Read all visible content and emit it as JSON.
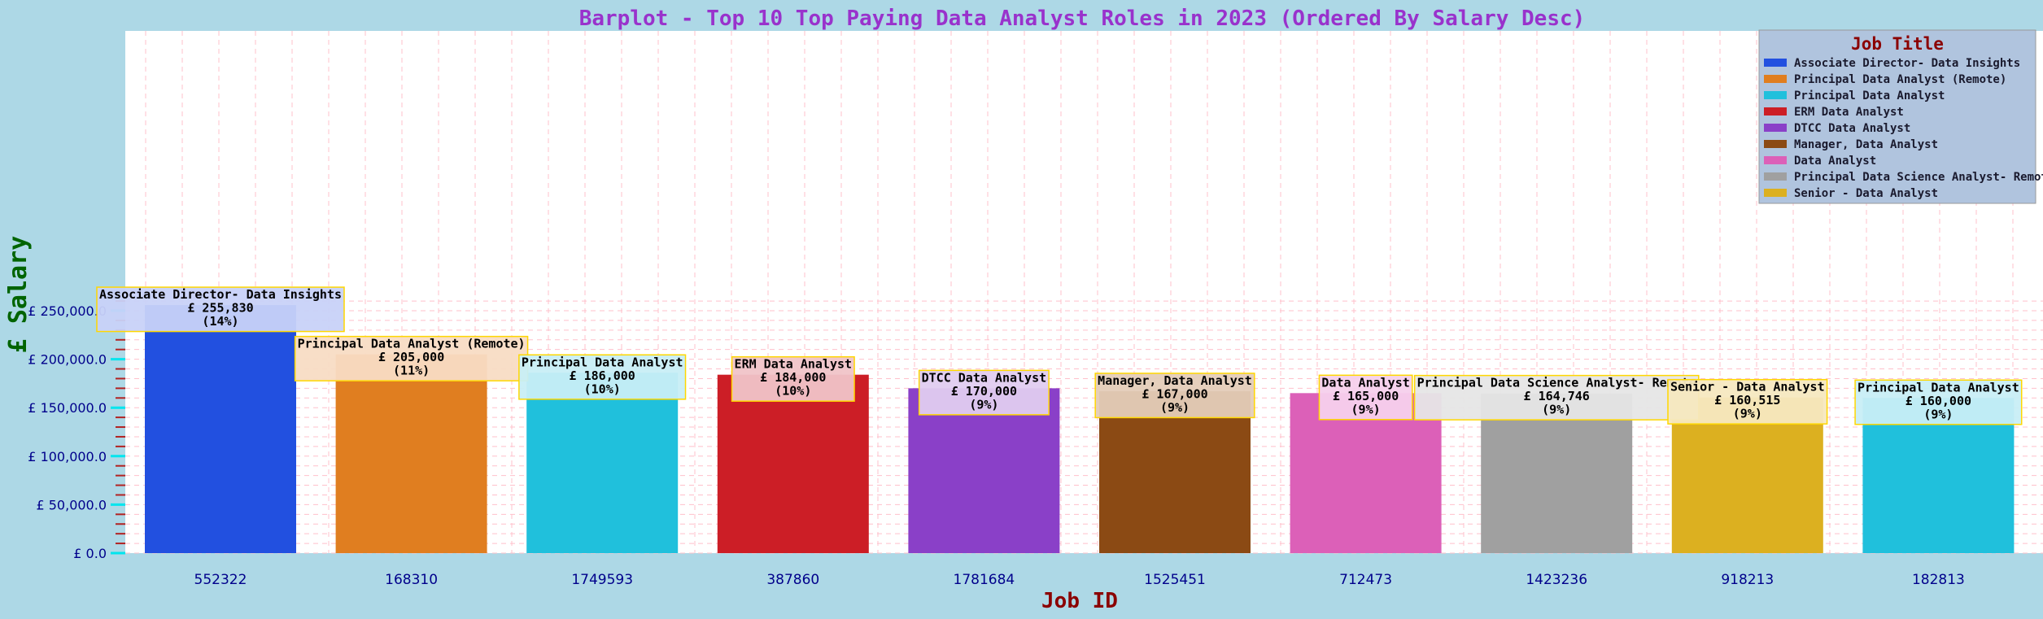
{
  "chart_data": {
    "type": "bar",
    "title": "Barplot - Top 10 Top Paying Data Analyst Roles in 2023 (Ordered By Salary Desc)",
    "xlabel": "Job ID",
    "ylabel": "£ Salary",
    "categories": [
      "552322",
      "168310",
      "1749593",
      "387860",
      "1781684",
      "1525451",
      "712473",
      "1423236",
      "918213",
      "182813"
    ],
    "job_titles": [
      "Associate Director- Data Insights",
      "Principal Data Analyst (Remote)",
      "Principal Data Analyst",
      "ERM Data Analyst",
      "DTCC Data Analyst",
      "Manager, Data Analyst",
      "Data Analyst",
      "Principal Data Science Analyst- Remote",
      "Senior - Data Analyst",
      "Principal Data Analyst"
    ],
    "values": [
      255830,
      205000,
      186000,
      184000,
      170000,
      167000,
      165000,
      164746,
      160515,
      160000
    ],
    "value_labels": [
      "£ 255,830",
      "£ 205,000",
      "£ 186,000",
      "£ 184,000",
      "£ 170,000",
      "£ 167,000",
      "£ 165,000",
      "£ 164,746",
      "£ 160,515",
      "£ 160,000"
    ],
    "percent_labels": [
      "(14%)",
      "(11%)",
      "(10%)",
      "(10%)",
      "(9%)",
      "(9%)",
      "(9%)",
      "(9%)",
      "(9%)",
      "(9%)"
    ],
    "colors": [
      "#2250e0",
      "#e07e20",
      "#20c0dc",
      "#cc1e26",
      "#8a40c8",
      "#8b4a14",
      "#dc60b8",
      "#a0a0a0",
      "#dcb020",
      "#20c0dc"
    ],
    "label_bg_colors": [
      "#c8d2f8",
      "#f8dcc4",
      "#c8eef6",
      "#f0c4c8",
      "#e0ccf0",
      "#e4ccb8",
      "#f6d0ec",
      "#e6e6e6",
      "#f6e8c0",
      "#c8eef6"
    ],
    "ylim": [
      0,
      268000
    ],
    "yticks": [
      0,
      50000,
      100000,
      150000,
      200000,
      250000
    ],
    "ytick_labels": [
      "£ 0.0",
      "£ 50,000.0",
      "£ 100,000.0",
      "£ 150,000.0",
      "£ 200,000.0",
      "£ 250,000.0"
    ],
    "grid": true,
    "legend": {
      "title": "Job Title",
      "placement": "top-right",
      "entries": [
        "Associate Director- Data Insights",
        "Principal Data Analyst (Remote)",
        "Principal Data Analyst",
        "ERM Data Analyst",
        "DTCC Data Analyst",
        "Manager, Data Analyst",
        "Data Analyst",
        "Principal Data Science Analyst- Remote",
        "Senior - Data Analyst"
      ],
      "colors": [
        "#2250e0",
        "#e07e20",
        "#20c0dc",
        "#cc1e26",
        "#8a40c8",
        "#8b4a14",
        "#dc60b8",
        "#a0a0a0",
        "#dcb020"
      ]
    }
  }
}
